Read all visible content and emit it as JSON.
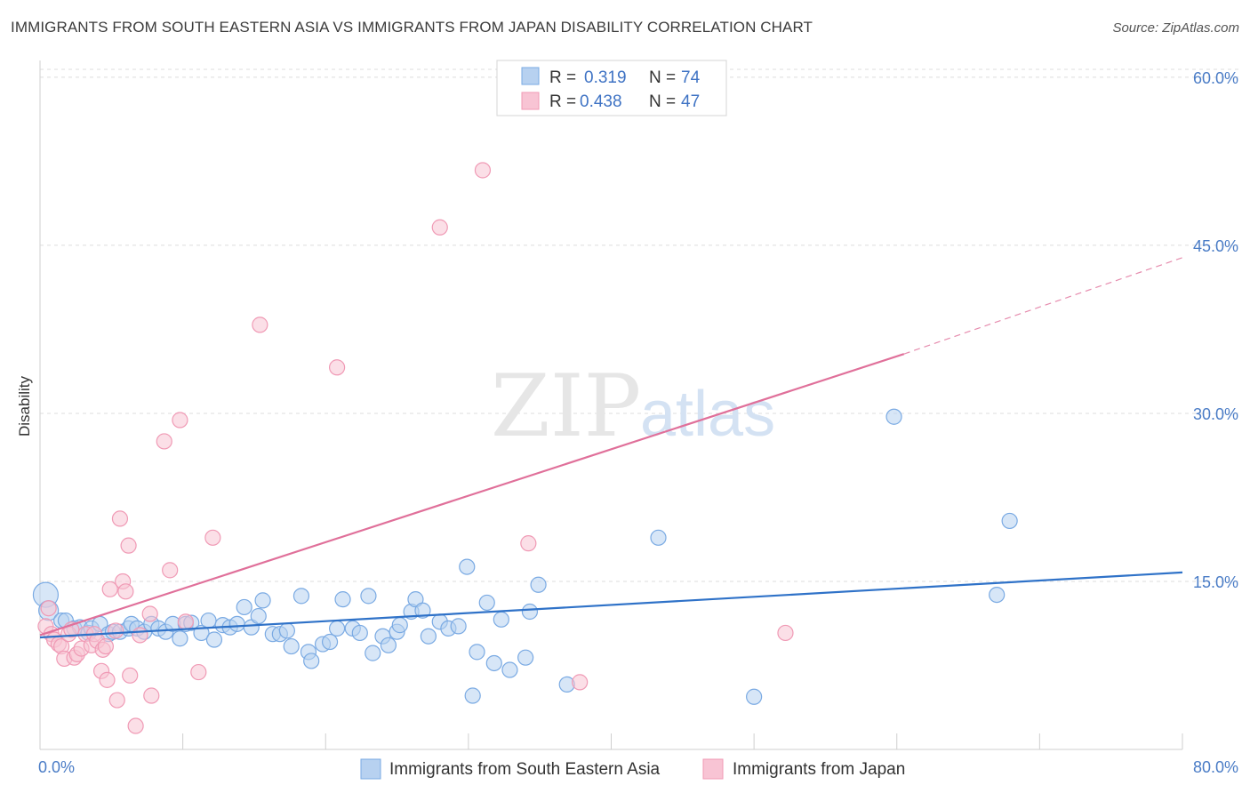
{
  "title": "IMMIGRANTS FROM SOUTH EASTERN ASIA VS IMMIGRANTS FROM JAPAN DISABILITY CORRELATION CHART",
  "source": "Source: ZipAtlas.com",
  "watermark": {
    "zip": "ZIP",
    "atlas": "atlas"
  },
  "chart_data": {
    "type": "scatter",
    "title": "IMMIGRANTS FROM SOUTH EASTERN ASIA VS IMMIGRANTS FROM JAPAN DISABILITY CORRELATION CHART",
    "xlabel": "",
    "ylabel": "Disability",
    "xlim": [
      0,
      80
    ],
    "ylim": [
      0,
      61.5
    ],
    "y_ticks": [
      15,
      30,
      45,
      60
    ],
    "y_tick_labels": [
      "15.0%",
      "30.0%",
      "45.0%",
      "60.0%"
    ],
    "x_tick_labels": [
      "0.0%",
      "80.0%"
    ],
    "grid": true,
    "legend_stats": [
      {
        "r_label": "R =",
        "r": "0.319",
        "n_label": "N =",
        "n": "74"
      },
      {
        "r_label": "R =",
        "r": "0.438",
        "n_label": "N =",
        "n": "47"
      }
    ],
    "series": [
      {
        "name": "Immigrants from South Eastern Asia",
        "color": "#7aaae3",
        "fill": "#b7d1f0",
        "trend": {
          "x0": 0,
          "y0": 10.0,
          "x1": 80,
          "y1": 15.8,
          "color": "#2f72c8"
        },
        "points": [
          [
            0.4,
            13.8,
            2
          ],
          [
            0.6,
            12.4,
            1.5
          ],
          [
            1.5,
            11.5,
            1
          ],
          [
            1.8,
            11.5,
            1
          ],
          [
            2.4,
            10.8,
            1
          ],
          [
            2.8,
            10.9,
            1
          ],
          [
            3.4,
            10.4,
            1
          ],
          [
            3.6,
            10.8,
            1
          ],
          [
            4.2,
            11.2,
            1
          ],
          [
            4.8,
            10.3,
            1
          ],
          [
            5.1,
            10.5,
            1
          ],
          [
            5.6,
            10.5,
            1
          ],
          [
            6.2,
            10.8,
            1
          ],
          [
            6.4,
            11.2,
            1
          ],
          [
            6.8,
            10.8,
            1
          ],
          [
            7.3,
            10.5,
            1
          ],
          [
            7.8,
            11.2,
            1
          ],
          [
            8.3,
            10.8,
            1
          ],
          [
            8.8,
            10.5,
            1
          ],
          [
            9.3,
            11.2,
            1
          ],
          [
            9.8,
            9.9,
            1
          ],
          [
            10.2,
            11.2,
            1
          ],
          [
            10.6,
            11.3,
            1
          ],
          [
            11.3,
            10.4,
            1
          ],
          [
            11.8,
            11.5,
            1
          ],
          [
            12.2,
            9.8,
            1
          ],
          [
            12.8,
            11.1,
            1
          ],
          [
            13.3,
            10.9,
            1
          ],
          [
            13.8,
            11.2,
            1
          ],
          [
            14.3,
            12.7,
            1
          ],
          [
            14.8,
            10.9,
            1
          ],
          [
            15.3,
            11.9,
            1
          ],
          [
            15.6,
            13.3,
            1
          ],
          [
            16.3,
            10.3,
            1
          ],
          [
            16.8,
            10.3,
            1
          ],
          [
            17.3,
            10.6,
            1
          ],
          [
            17.6,
            9.2,
            1
          ],
          [
            18.3,
            13.7,
            1
          ],
          [
            18.8,
            8.7,
            1
          ],
          [
            19.0,
            7.9,
            1
          ],
          [
            19.8,
            9.4,
            1
          ],
          [
            20.3,
            9.6,
            1
          ],
          [
            20.8,
            10.8,
            1
          ],
          [
            21.2,
            13.4,
            1
          ],
          [
            21.9,
            10.8,
            1
          ],
          [
            22.4,
            10.4,
            1
          ],
          [
            23.0,
            13.7,
            1
          ],
          [
            23.3,
            8.6,
            1
          ],
          [
            24.0,
            10.1,
            1
          ],
          [
            24.4,
            9.3,
            1
          ],
          [
            25.0,
            10.5,
            1
          ],
          [
            25.2,
            11.1,
            1
          ],
          [
            26.0,
            12.3,
            1
          ],
          [
            26.3,
            13.4,
            1
          ],
          [
            26.8,
            12.4,
            1
          ],
          [
            27.2,
            10.1,
            1
          ],
          [
            28.0,
            11.4,
            1
          ],
          [
            28.6,
            10.8,
            1
          ],
          [
            29.3,
            11.0,
            1
          ],
          [
            29.9,
            16.3,
            1
          ],
          [
            30.3,
            4.8,
            1
          ],
          [
            30.6,
            8.7,
            1
          ],
          [
            31.3,
            13.1,
            1
          ],
          [
            31.8,
            7.7,
            1
          ],
          [
            32.3,
            11.6,
            1
          ],
          [
            32.9,
            7.1,
            1
          ],
          [
            34.0,
            8.2,
            1
          ],
          [
            34.3,
            12.3,
            1
          ],
          [
            34.9,
            14.7,
            1
          ],
          [
            36.9,
            5.8,
            1
          ],
          [
            43.3,
            18.9,
            1
          ],
          [
            50.0,
            4.7,
            1
          ],
          [
            59.8,
            29.7,
            1
          ],
          [
            67.0,
            13.8,
            1
          ],
          [
            67.9,
            20.4,
            1
          ]
        ]
      },
      {
        "name": "Immigrants from Japan",
        "color": "#f09ab5",
        "fill": "#f8c4d4",
        "trend": {
          "x0": 0,
          "y0": 10.2,
          "x1": 60.5,
          "y1": 35.3,
          "dash_x1": 80,
          "dash_y1": 43.9,
          "color": "#e0709a"
        },
        "points": [
          [
            0.4,
            11.0,
            1
          ],
          [
            0.6,
            12.6,
            1
          ],
          [
            0.8,
            10.3,
            1
          ],
          [
            1.0,
            9.8,
            1
          ],
          [
            1.3,
            9.4,
            1
          ],
          [
            1.5,
            9.2,
            1
          ],
          [
            1.7,
            8.1,
            1
          ],
          [
            2.0,
            10.3,
            1
          ],
          [
            2.2,
            10.7,
            1
          ],
          [
            2.4,
            8.2,
            1
          ],
          [
            2.6,
            8.5,
            1
          ],
          [
            2.9,
            9.0,
            1
          ],
          [
            3.2,
            10.3,
            1
          ],
          [
            3.6,
            9.3,
            1
          ],
          [
            3.8,
            10.3,
            1
          ],
          [
            4.0,
            9.7,
            1
          ],
          [
            4.3,
            7.0,
            1
          ],
          [
            4.4,
            8.9,
            1
          ],
          [
            4.6,
            9.2,
            1
          ],
          [
            4.7,
            6.2,
            1
          ],
          [
            4.9,
            14.3,
            1
          ],
          [
            5.3,
            10.6,
            1
          ],
          [
            5.4,
            4.4,
            1
          ],
          [
            5.6,
            20.6,
            1
          ],
          [
            5.8,
            15.0,
            1
          ],
          [
            6.0,
            14.1,
            1
          ],
          [
            6.2,
            18.2,
            1
          ],
          [
            6.3,
            6.6,
            1
          ],
          [
            6.7,
            2.1,
            1
          ],
          [
            7.0,
            10.2,
            1
          ],
          [
            7.7,
            12.1,
            1
          ],
          [
            7.8,
            4.8,
            1
          ],
          [
            8.7,
            27.5,
            1
          ],
          [
            9.1,
            16.0,
            1
          ],
          [
            9.8,
            29.4,
            1
          ],
          [
            10.2,
            11.4,
            1
          ],
          [
            11.1,
            6.9,
            1
          ],
          [
            12.1,
            18.9,
            1
          ],
          [
            15.4,
            37.9,
            1
          ],
          [
            20.8,
            34.1,
            1
          ],
          [
            28.0,
            46.6,
            1
          ],
          [
            31.0,
            51.7,
            1
          ],
          [
            34.2,
            18.4,
            1
          ],
          [
            37.8,
            6.0,
            1
          ],
          [
            52.2,
            10.4,
            1
          ]
        ]
      }
    ]
  },
  "bottom_legend": [
    {
      "label": "Immigrants from South Eastern Asia"
    },
    {
      "label": "Immigrants from Japan"
    }
  ]
}
